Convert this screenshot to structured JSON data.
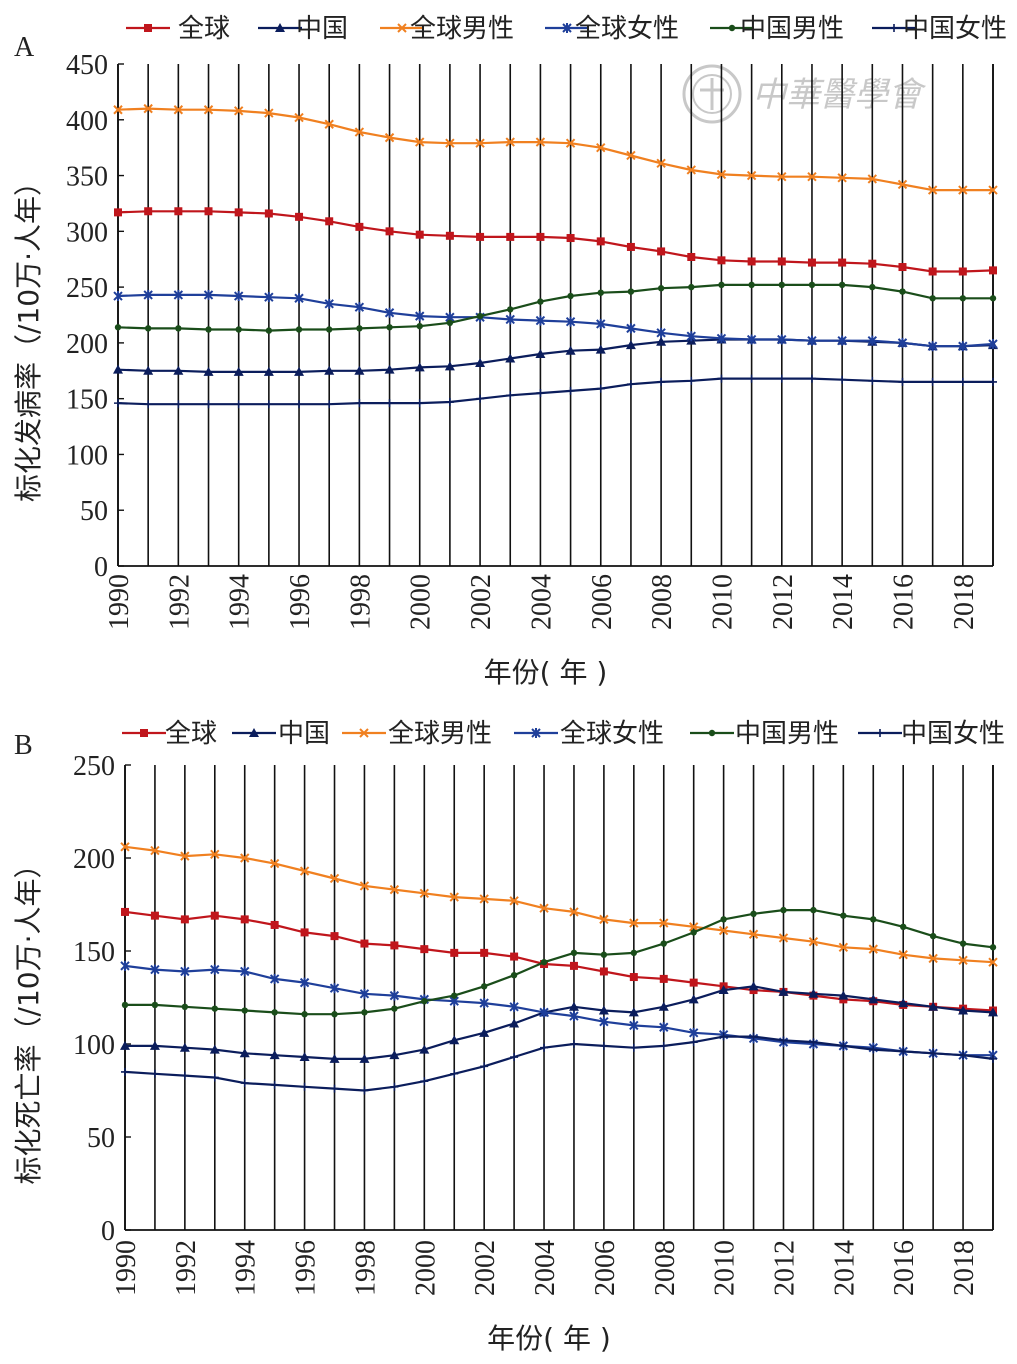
{
  "watermark": {
    "text": "中華醫學會",
    "icon": "society-seal-icon"
  },
  "chart_data": [
    {
      "type": "line",
      "panel_label": "A",
      "xlabel": "年份( 年 )",
      "ylabel": "标化发病率（/10万·人年）",
      "ylim": [
        0,
        450
      ],
      "yticks": [
        0,
        50,
        100,
        150,
        200,
        250,
        300,
        350,
        400,
        450
      ],
      "xticks": [
        1990,
        1992,
        1994,
        1996,
        1998,
        2000,
        2002,
        2004,
        2006,
        2008,
        2010,
        2012,
        2014,
        2016,
        2018
      ],
      "x": [
        1990,
        1991,
        1992,
        1993,
        1994,
        1995,
        1996,
        1997,
        1998,
        1999,
        2000,
        2001,
        2002,
        2003,
        2004,
        2005,
        2006,
        2007,
        2008,
        2009,
        2010,
        2011,
        2012,
        2013,
        2014,
        2015,
        2016,
        2017,
        2018,
        2019
      ],
      "grid": "vertical",
      "legend_position": "top",
      "series": [
        {
          "name": "全球",
          "color": "#c0161c",
          "marker": "square",
          "values": [
            317,
            318,
            318,
            318,
            317,
            316,
            313,
            309,
            304,
            300,
            297,
            296,
            295,
            295,
            295,
            294,
            291,
            286,
            282,
            277,
            274,
            273,
            273,
            272,
            272,
            271,
            268,
            264,
            264,
            265
          ]
        },
        {
          "name": "中国",
          "color": "#0b1d5c",
          "marker": "triangle",
          "values": [
            176,
            175,
            175,
            174,
            174,
            174,
            174,
            175,
            175,
            176,
            178,
            179,
            182,
            186,
            190,
            193,
            194,
            198,
            201,
            202,
            203,
            203,
            203,
            202,
            202,
            201,
            200,
            197,
            197,
            198
          ]
        },
        {
          "name": "全球男性",
          "color": "#f08020",
          "marker": "x",
          "values": [
            409,
            410,
            409,
            409,
            408,
            406,
            402,
            396,
            389,
            384,
            380,
            379,
            379,
            380,
            380,
            379,
            375,
            368,
            361,
            355,
            351,
            350,
            349,
            349,
            348,
            347,
            342,
            337,
            337,
            337
          ]
        },
        {
          "name": "全球女性",
          "color": "#1f3f9a",
          "marker": "star",
          "values": [
            242,
            243,
            243,
            243,
            242,
            241,
            240,
            235,
            232,
            227,
            224,
            223,
            223,
            221,
            220,
            219,
            217,
            213,
            209,
            206,
            204,
            203,
            203,
            202,
            202,
            202,
            200,
            197,
            197,
            199
          ]
        },
        {
          "name": "中国男性",
          "color": "#1a4d1a",
          "marker": "dot",
          "values": [
            214,
            213,
            213,
            212,
            212,
            211,
            212,
            212,
            213,
            214,
            215,
            218,
            224,
            230,
            237,
            242,
            245,
            246,
            249,
            250,
            252,
            252,
            252,
            252,
            252,
            250,
            246,
            240,
            240,
            240
          ]
        },
        {
          "name": "中国女性",
          "color": "#0b1d5c",
          "marker": "plus",
          "values": [
            146,
            145,
            145,
            145,
            145,
            145,
            145,
            145,
            146,
            146,
            146,
            147,
            150,
            153,
            155,
            157,
            159,
            163,
            165,
            166,
            168,
            168,
            168,
            168,
            167,
            166,
            165,
            165,
            165,
            165
          ]
        }
      ]
    },
    {
      "type": "line",
      "panel_label": "B",
      "xlabel": "年份( 年 )",
      "ylabel": "标化死亡率（/10万·人年）",
      "ylim": [
        0,
        250
      ],
      "yticks": [
        0,
        50,
        100,
        150,
        200,
        250
      ],
      "xticks": [
        1990,
        1992,
        1994,
        1996,
        1998,
        2000,
        2002,
        2004,
        2006,
        2008,
        2010,
        2012,
        2014,
        2016,
        2018
      ],
      "x": [
        1990,
        1991,
        1992,
        1993,
        1994,
        1995,
        1996,
        1997,
        1998,
        1999,
        2000,
        2001,
        2002,
        2003,
        2004,
        2005,
        2006,
        2007,
        2008,
        2009,
        2010,
        2011,
        2012,
        2013,
        2014,
        2015,
        2016,
        2017,
        2018,
        2019
      ],
      "grid": "vertical",
      "legend_position": "top",
      "series": [
        {
          "name": "全球",
          "color": "#c0161c",
          "marker": "square",
          "values": [
            171,
            169,
            167,
            169,
            167,
            164,
            160,
            158,
            154,
            153,
            151,
            149,
            149,
            147,
            143,
            142,
            139,
            136,
            135,
            133,
            131,
            129,
            128,
            126,
            124,
            123,
            121,
            120,
            119,
            118
          ]
        },
        {
          "name": "中国",
          "color": "#0b1d5c",
          "marker": "triangle",
          "values": [
            99,
            99,
            98,
            97,
            95,
            94,
            93,
            92,
            92,
            94,
            97,
            102,
            106,
            111,
            117,
            120,
            118,
            117,
            120,
            124,
            129,
            131,
            128,
            127,
            126,
            124,
            122,
            120,
            118,
            117
          ]
        },
        {
          "name": "全球男性",
          "color": "#f08020",
          "marker": "x",
          "values": [
            206,
            204,
            201,
            202,
            200,
            197,
            193,
            189,
            185,
            183,
            181,
            179,
            178,
            177,
            173,
            171,
            167,
            165,
            165,
            163,
            161,
            159,
            157,
            155,
            152,
            151,
            148,
            146,
            145,
            144
          ]
        },
        {
          "name": "全球女性",
          "color": "#1f3f9a",
          "marker": "star",
          "values": [
            142,
            140,
            139,
            140,
            139,
            135,
            133,
            130,
            127,
            126,
            124,
            123,
            122,
            120,
            117,
            115,
            112,
            110,
            109,
            106,
            105,
            103,
            101,
            100,
            99,
            98,
            96,
            95,
            94,
            94
          ]
        },
        {
          "name": "中国男性",
          "color": "#1a4d1a",
          "marker": "dot",
          "values": [
            121,
            121,
            120,
            119,
            118,
            117,
            116,
            116,
            117,
            119,
            123,
            126,
            131,
            137,
            144,
            149,
            148,
            149,
            154,
            160,
            167,
            170,
            172,
            172,
            169,
            167,
            163,
            158,
            154,
            152
          ]
        },
        {
          "name": "中国女性",
          "color": "#0b1d5c",
          "marker": "plus",
          "values": [
            85,
            84,
            83,
            82,
            79,
            78,
            77,
            76,
            75,
            77,
            80,
            84,
            88,
            93,
            98,
            100,
            99,
            98,
            99,
            101,
            104,
            104,
            102,
            101,
            99,
            97,
            96,
            95,
            94,
            92
          ]
        }
      ]
    }
  ]
}
